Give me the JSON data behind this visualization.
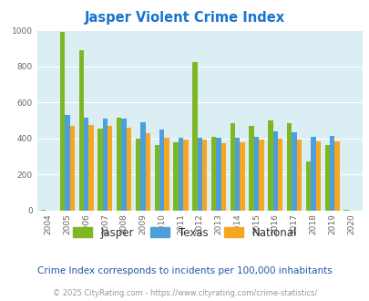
{
  "title": "Jasper Violent Crime Index",
  "years": [
    "2004",
    "2005",
    "2006",
    "2007",
    "2008",
    "2009",
    "2010",
    "2011",
    "2012",
    "2013",
    "2014",
    "2015",
    "2016",
    "2017",
    "2018",
    "2019",
    "2020"
  ],
  "jasper": [
    5,
    990,
    890,
    455,
    515,
    400,
    365,
    380,
    825,
    408,
    485,
    468,
    500,
    483,
    275,
    365,
    5
  ],
  "texas": [
    0,
    530,
    515,
    510,
    510,
    490,
    450,
    405,
    405,
    402,
    405,
    410,
    440,
    435,
    410,
    415,
    0
  ],
  "national": [
    0,
    468,
    475,
    468,
    458,
    430,
    405,
    395,
    395,
    375,
    378,
    395,
    400,
    395,
    385,
    383,
    0
  ],
  "jasper_color": "#7db824",
  "texas_color": "#4d9fdb",
  "national_color": "#f5a623",
  "bg_color": "#daeef3",
  "title_color": "#1874cd",
  "ylim": [
    0,
    1000
  ],
  "yticks": [
    0,
    200,
    400,
    600,
    800,
    1000
  ],
  "subtitle": "Crime Index corresponds to incidents per 100,000 inhabitants",
  "footer": "© 2025 CityRating.com - https://www.cityrating.com/crime-statistics/",
  "bar_width": 0.26,
  "subtitle_color": "#2255aa",
  "footer_color": "#999999",
  "legend_text_color": "#333333"
}
